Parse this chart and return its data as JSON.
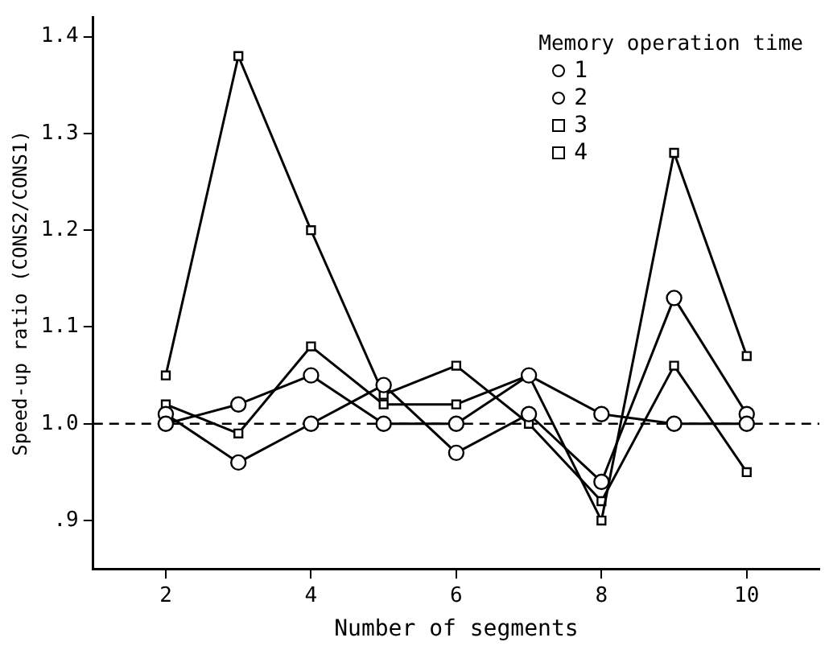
{
  "chart_data": {
    "type": "line",
    "xlabel": "Number of segments",
    "ylabel": "Speed-up ratio (CONS2/CONS1)",
    "legend_title": "Memory operation time",
    "legend": "top right",
    "grid": false,
    "x": [
      2,
      3,
      4,
      5,
      6,
      7,
      8,
      9,
      10
    ],
    "xlim": [
      1,
      11
    ],
    "xticks": [
      2,
      4,
      6,
      8,
      10
    ],
    "ylim": [
      0.85,
      1.42
    ],
    "yticks": [
      {
        "value": 0.9,
        "label": ".9"
      },
      {
        "value": 1.0,
        "label": "1.0"
      },
      {
        "value": 1.1,
        "label": "1.1"
      },
      {
        "value": 1.2,
        "label": "1.2"
      },
      {
        "value": 1.3,
        "label": "1.3"
      },
      {
        "value": 1.4,
        "label": "1.4"
      }
    ],
    "ref_lines": [
      {
        "axis": "y",
        "value": 1.0,
        "line_style": "dashed",
        "color": "#000000"
      }
    ],
    "line_style": "solid",
    "series": [
      {
        "name": "1",
        "color": "#000000",
        "marker": "circle",
        "values": [
          1.0,
          1.02,
          1.05,
          1.0,
          1.0,
          1.05,
          1.01,
          1.0,
          1.0
        ]
      },
      {
        "name": "2",
        "color": "#000000",
        "marker": "circle",
        "values": [
          1.01,
          0.96,
          1.0,
          1.04,
          0.97,
          1.01,
          0.94,
          1.13,
          1.01
        ]
      },
      {
        "name": "3",
        "color": "#000000",
        "marker": "square",
        "values": [
          1.02,
          0.99,
          1.08,
          1.02,
          1.02,
          1.05,
          0.9,
          1.28,
          1.07
        ]
      },
      {
        "name": "4",
        "color": "#000000",
        "marker": "square",
        "values": [
          1.05,
          1.38,
          1.2,
          1.03,
          1.06,
          1.0,
          0.92,
          1.06,
          0.95
        ]
      }
    ]
  }
}
